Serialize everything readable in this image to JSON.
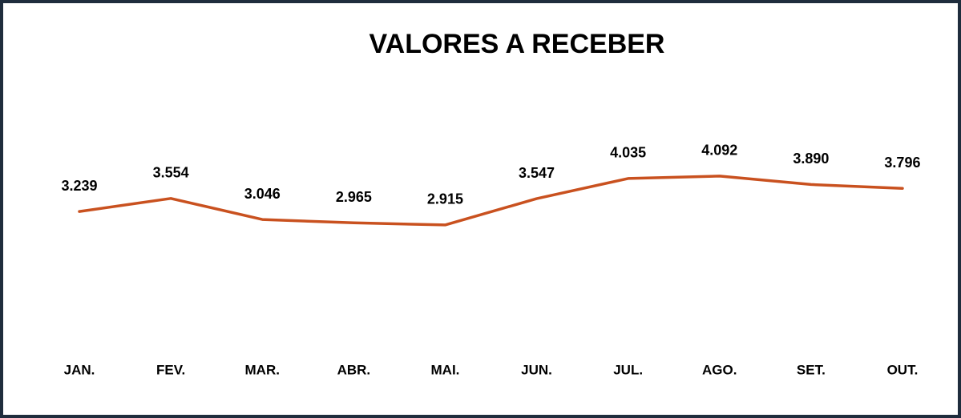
{
  "chart_data": {
    "type": "line",
    "title": "VALORES A RECEBER",
    "categories": [
      "JAN.",
      "FEV.",
      "MAR.",
      "ABR.",
      "MAI.",
      "JUN.",
      "JUL.",
      "AGO.",
      "SET.",
      "OUT."
    ],
    "values": [
      3239,
      3554,
      3046,
      2965,
      2915,
      3547,
      4035,
      4092,
      3890,
      3796
    ],
    "value_labels": [
      "3.239",
      "3.554",
      "3.046",
      "2.965",
      "2.915",
      "3.547",
      "4.035",
      "4.092",
      "3.890",
      "3.796"
    ],
    "color": "#c9511f",
    "ylim": [
      0,
      6000
    ]
  }
}
